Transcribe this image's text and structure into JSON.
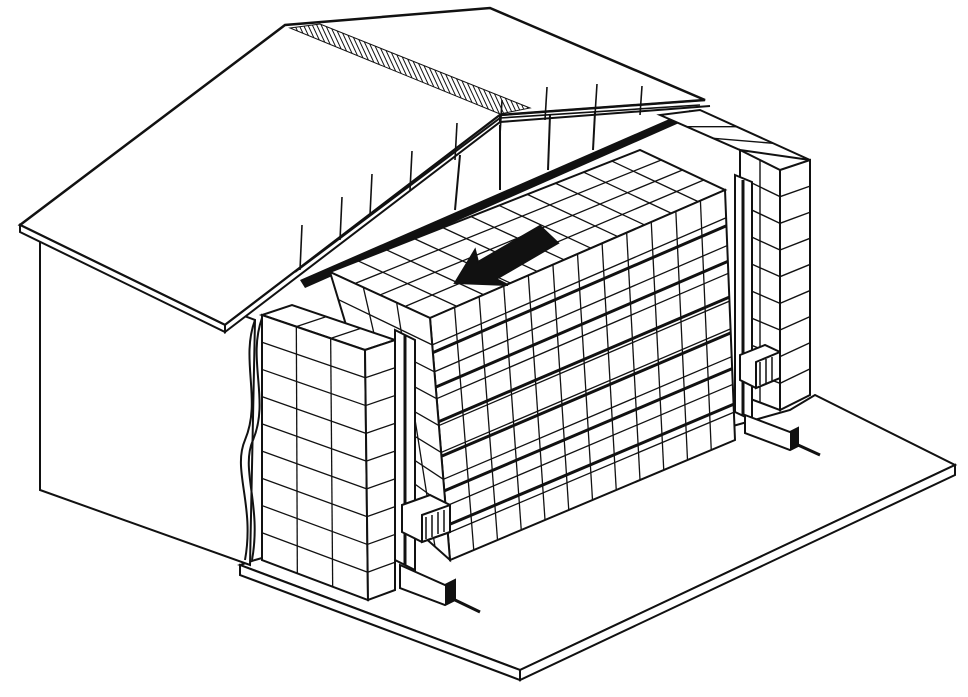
{
  "figure": {
    "subject": "cutaway-storage-building-with-stacked-crates-and-fans",
    "colors": {
      "ink": "#111111",
      "paper": "#ffffff"
    },
    "arrow_direction": "airflow-left",
    "icons": [
      "roof-icon",
      "fan-icon",
      "airflow-arrow-icon",
      "duct-icon"
    ]
  }
}
